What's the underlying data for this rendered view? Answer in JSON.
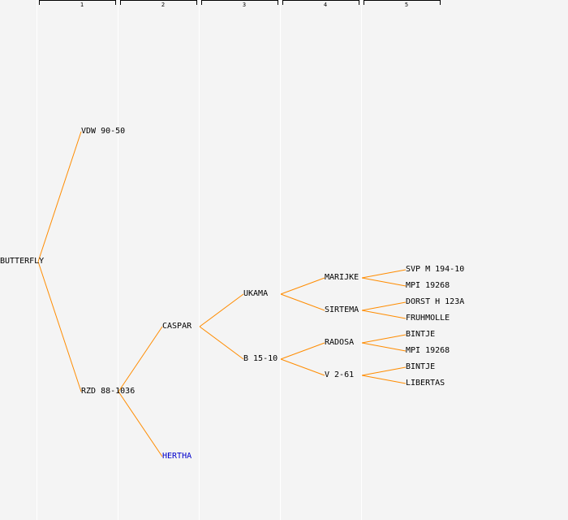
{
  "generations": [
    "1",
    "2",
    "3",
    "4",
    "5"
  ],
  "edge_color": "#ff8c00",
  "nodes": {
    "root": {
      "label": "BUTTERFLY"
    },
    "sire": {
      "label": "VDW 90-50"
    },
    "dam": {
      "label": "RZD 88-1036"
    },
    "dam_sire": {
      "label": "CASPAR"
    },
    "dam_dam": {
      "label": "HERTHA",
      "color": "#0000cc"
    },
    "ukama": {
      "label": "UKAMA"
    },
    "b1510": {
      "label": "B 15-10"
    },
    "marijke": {
      "label": "MARIJKE"
    },
    "sirtema": {
      "label": "SIRTEMA"
    },
    "radosa": {
      "label": "RADOSA"
    },
    "v261": {
      "label": "V 2-61"
    },
    "svp": {
      "label": "SVP M 194-10"
    },
    "mpi1": {
      "label": "MPI 19268"
    },
    "dorst": {
      "label": "DORST H 123A"
    },
    "fruhmolle": {
      "label": "FRUHMOLLE"
    },
    "bintje1": {
      "label": "BINTJE"
    },
    "mpi2": {
      "label": "MPI 19268"
    },
    "bintje2": {
      "label": "BINTJE"
    },
    "libertas": {
      "label": "LIBERTAS"
    }
  }
}
